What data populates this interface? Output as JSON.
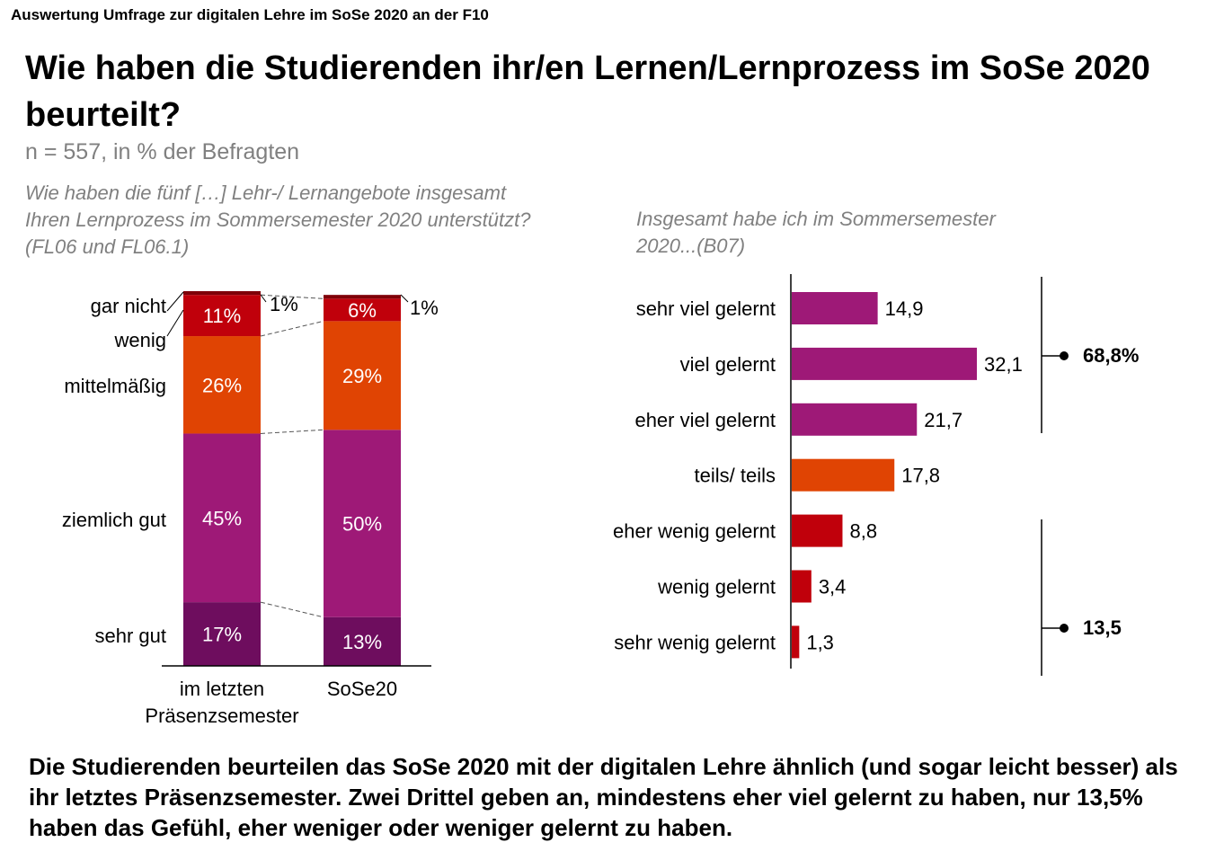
{
  "header": {
    "topline": "Auswertung Umfrage zur digitalen Lehre im SoSe 2020 an der F10",
    "title": "Wie haben die Studierenden ihr/en Lernen/Lernprozess im SoSe 2020 beurteilt?",
    "subtitle": "n = 557, in % der Befragten"
  },
  "questions": {
    "left": "Wie haben die fünf […] Lehr-/ Lernangebote insgesamt Ihren Lernprozess im Sommersemester 2020 unterstützt? (FL06 und FL06.1)",
    "right": "Insgesamt habe ich im Sommersemester 2020...(B07)"
  },
  "conclusion": "Die Studierenden beurteilen das SoSe 2020 mit der digitalen Lehre ähnlich (und sogar leicht besser) als ihr letztes Präsenzsemester. Zwei Drittel geben an, mindestens eher viel gelernt zu haben, nur 13,5% haben das Gefühl, eher weniger oder weniger gelernt zu haben.",
  "chart_data": [
    {
      "type": "bar",
      "stacked": true,
      "orientation": "vertical",
      "categories": [
        "im letzten Präsenzsemester",
        "SoSe20"
      ],
      "series": [
        {
          "name": "sehr gut",
          "values": [
            17,
            13
          ],
          "labels": [
            "17%",
            "13%"
          ],
          "color": "#6e0d5e"
        },
        {
          "name": "ziemlich gut",
          "values": [
            45,
            50
          ],
          "labels": [
            "45%",
            "50%"
          ],
          "color": "#9e1977"
        },
        {
          "name": "mittelmäßig",
          "values": [
            26,
            29
          ],
          "labels": [
            "26%",
            "29%"
          ],
          "color": "#e04403"
        },
        {
          "name": "wenig",
          "values": [
            11,
            6
          ],
          "labels": [
            "11%",
            "6%"
          ],
          "color": "#c0000b"
        },
        {
          "name": "gar nicht",
          "values": [
            1,
            1
          ],
          "labels": [
            "1%",
            "1%"
          ],
          "color": "#7f0008"
        }
      ],
      "ylim": [
        0,
        100
      ]
    },
    {
      "type": "bar",
      "orientation": "horizontal",
      "categories": [
        "sehr viel gelernt",
        "viel gelernt",
        "eher viel gelernt",
        "teils/ teils",
        "eher wenig gelernt",
        "wenig gelernt",
        "sehr wenig gelernt"
      ],
      "values": [
        14.9,
        32.1,
        21.7,
        17.8,
        8.8,
        3.4,
        1.3
      ],
      "value_labels": [
        "14,9",
        "32,1",
        "21,7",
        "17,8",
        "8,8",
        "3,4",
        "1,3"
      ],
      "colors": [
        "#9e1977",
        "#9e1977",
        "#9e1977",
        "#e04403",
        "#c0000b",
        "#c0000b",
        "#c0000b"
      ],
      "groups": [
        {
          "label": "68,8%",
          "members": [
            "sehr viel gelernt",
            "viel gelernt",
            "eher viel gelernt"
          ]
        },
        {
          "label": "13,5",
          "members": [
            "eher wenig gelernt",
            "wenig gelernt",
            "sehr wenig gelernt"
          ]
        }
      ]
    }
  ]
}
